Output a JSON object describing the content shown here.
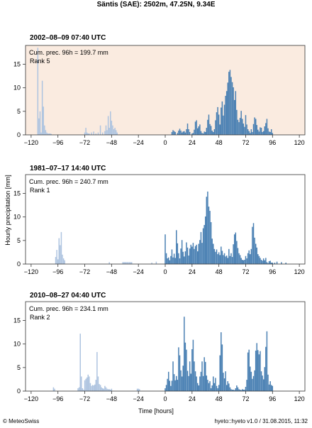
{
  "title": "Säntis (SAE): 2502m, 47.25N, 9.34E",
  "ylabel": "Hourly precipitation [mm]",
  "xlabel": "Time [hours]",
  "footer_left": "© MeteoSwiss",
  "footer_right": "hyeto::hyeto v1.0 / 31.08.2015, 11:32",
  "colors": {
    "before_event": "#aec4e0",
    "event": "#4a80b3",
    "highlight_bg": "#faebe0",
    "frame": "#333333"
  },
  "chart_data": [
    {
      "type": "bar",
      "title": "2002–08–09 07:40 UTC",
      "annotation_line1": "Cum. prec. 96h = 199.7 mm",
      "annotation_line2": "Rank 5",
      "highlighted": true,
      "xlim": [
        -125,
        125
      ],
      "ylim": [
        0,
        19
      ],
      "xticks": [
        -120,
        -96,
        -72,
        -48,
        -24,
        0,
        24,
        48,
        72,
        96,
        120
      ],
      "yticks": [
        0,
        5,
        10,
        15
      ],
      "grid": false,
      "series": [
        {
          "x": [
            -114,
            -113,
            -112,
            -111,
            -110,
            -109,
            -108,
            -107,
            -106,
            -105,
            -104,
            -103,
            -102,
            -72,
            -71,
            -70,
            -69,
            -68,
            -66,
            -64,
            -62,
            -60,
            -58,
            -56,
            -54,
            -53,
            -52,
            -51,
            -50,
            -49,
            -48,
            -47,
            -46,
            -45,
            -44,
            -43
          ],
          "values": [
            18.5,
            3.5,
            5,
            0.5,
            11.5,
            6,
            2,
            1,
            0.5,
            0.3,
            0.3,
            0.3,
            0.2,
            0.5,
            1.5,
            0.5,
            0.3,
            0.3,
            0.5,
            0.7,
            0.3,
            0.5,
            2,
            0.5,
            0.8,
            2,
            1,
            4,
            1.5,
            5,
            3,
            2,
            1.2,
            1.5,
            1,
            0.5
          ]
        },
        {
          "x": [
            6,
            7,
            8,
            9,
            11,
            12,
            13,
            14,
            15,
            16,
            17,
            18,
            19,
            20,
            21,
            22,
            24,
            25,
            26,
            27,
            28,
            29,
            30,
            31,
            32,
            33,
            34,
            35,
            36,
            37,
            38,
            39,
            40,
            41,
            42,
            43,
            44,
            45,
            46,
            47,
            48,
            49,
            50,
            51,
            52,
            53,
            54,
            55,
            56,
            57,
            58,
            59,
            60,
            61,
            62,
            63,
            64,
            65,
            66,
            67,
            68,
            69,
            70,
            71,
            72,
            73,
            74,
            75,
            76,
            77,
            78,
            79,
            80,
            81,
            82,
            83,
            84,
            85,
            86,
            87,
            88,
            89,
            90,
            91,
            92,
            93,
            94,
            95,
            96
          ],
          "values": [
            0.6,
            1,
            0.8,
            0.6,
            0.4,
            0.9,
            1.3,
            0.9,
            0.5,
            0.7,
            0.8,
            0.5,
            1.2,
            2.4,
            1.2,
            0.6,
            0.3,
            0.4,
            1.1,
            2.8,
            3.1,
            1.4,
            1.8,
            2.2,
            0.8,
            0.4,
            0.3,
            0.7,
            0.6,
            1.5,
            3.2,
            4.3,
            2.3,
            1.9,
            0.9,
            0.6,
            1.2,
            3.1,
            4.8,
            5.9,
            4.3,
            2.2,
            5.8,
            7.1,
            4.1,
            6.4,
            8.3,
            9.3,
            11.1,
            13.4,
            13.8,
            12.3,
            11.2,
            10.1,
            7.4,
            9.3,
            5.3,
            3.2,
            2.7,
            3.6,
            5.1,
            3.4,
            2.4,
            1.7,
            4.2,
            2.2,
            1.2,
            0.8,
            0.4,
            1.2,
            0.6,
            2.3,
            3.7,
            3.4,
            2.1,
            1.1,
            0.7,
            1.6,
            1.5,
            0.6,
            0.8,
            1.8,
            2.5,
            3.4,
            1.4,
            0.7,
            0.6,
            1.2,
            0.4
          ]
        }
      ]
    },
    {
      "type": "bar",
      "title": "1981–07–17 14:40 UTC",
      "annotation_line1": "Cum. prec. 96h = 240.7 mm",
      "annotation_line2": "Rank 1",
      "highlighted": false,
      "xlim": [
        -125,
        125
      ],
      "ylim": [
        0,
        19
      ],
      "xticks": [
        -120,
        -96,
        -72,
        -48,
        -24,
        0,
        24,
        48,
        72,
        96,
        120
      ],
      "yticks": [
        0,
        5,
        10,
        15
      ],
      "grid": false,
      "series": [
        {
          "x": [
            -98,
            -97,
            -96,
            -95,
            -94,
            -93,
            -92,
            -91,
            -90,
            -50,
            -38,
            -37,
            -36,
            -35,
            -34,
            -33,
            -32,
            -31,
            -30,
            -12,
            -8
          ],
          "values": [
            1.5,
            3,
            1,
            5.5,
            4,
            6.8,
            2,
            1.2,
            0.8,
            0.4,
            0.4,
            0.4,
            0.4,
            0.4,
            0.4,
            0.4,
            0.4,
            0.4,
            0.4,
            0.3,
            0.5
          ]
        },
        {
          "x": [
            0,
            1,
            2,
            3,
            4,
            5,
            6,
            7,
            8,
            9,
            10,
            11,
            12,
            13,
            14,
            15,
            16,
            17,
            18,
            19,
            20,
            21,
            22,
            23,
            24,
            25,
            26,
            27,
            28,
            29,
            30,
            31,
            32,
            33,
            34,
            35,
            36,
            37,
            38,
            39,
            40,
            41,
            42,
            43,
            44,
            45,
            46,
            47,
            48,
            49,
            50,
            51,
            52,
            53,
            54,
            55,
            56,
            57,
            58,
            59,
            60,
            61,
            62,
            63,
            64,
            65,
            66,
            67,
            68,
            69,
            70,
            71,
            72,
            73,
            74,
            75,
            76,
            77,
            78,
            79,
            80,
            81,
            82,
            83,
            84,
            85,
            86,
            87,
            88,
            89,
            90,
            91,
            92,
            93,
            94,
            95,
            96,
            98,
            100,
            104,
            108
          ],
          "values": [
            6.3,
            2.3,
            1.2,
            1.4,
            0.8,
            1.7,
            3.1,
            1.4,
            2.2,
            1.3,
            7.2,
            4.4,
            2.3,
            1.2,
            3.3,
            5.1,
            2.6,
            1.6,
            2.7,
            4.6,
            3.5,
            1.8,
            3.3,
            4.1,
            3.7,
            4.5,
            3.2,
            3.8,
            4.1,
            2.7,
            4.3,
            5.1,
            6.8,
            4.5,
            7.6,
            8.3,
            10.1,
            14.3,
            15.4,
            12.2,
            11.3,
            8.9,
            5.4,
            4.3,
            3.2,
            2.6,
            3.1,
            2.1,
            2.5,
            1.9,
            3.7,
            2.8,
            1.9,
            2.3,
            1.6,
            1.8,
            1.3,
            3.2,
            1.7,
            2.3,
            1.5,
            4.2,
            6.3,
            6.7,
            4.9,
            3.4,
            2.3,
            1.9,
            1.3,
            0.9,
            0.8,
            0.9,
            1.7,
            1.2,
            2.3,
            2.9,
            2.1,
            3.2,
            7.9,
            8.7,
            5.6,
            4.3,
            3.5,
            2.1,
            1.7,
            1.3,
            0.9,
            0.7,
            1.2,
            0.8,
            1.3,
            0.4,
            0.2,
            0.6,
            0.7,
            0.3,
            0.3,
            0.3,
            0.5,
            0.4,
            0.3
          ]
        }
      ]
    },
    {
      "type": "bar",
      "title": "2010–08–27 04:40 UTC",
      "annotation_line1": "Cum. prec. 96h = 234.1 mm",
      "annotation_line2": "Rank 2",
      "highlighted": false,
      "xlim": [
        -125,
        125
      ],
      "ylim": [
        0,
        19
      ],
      "xticks": [
        -120,
        -96,
        -72,
        -48,
        -24,
        0,
        24,
        48,
        72,
        96,
        120
      ],
      "yticks": [
        0,
        5,
        10,
        15
      ],
      "grid": false,
      "series": [
        {
          "x": [
            -100,
            -99,
            -78,
            -77,
            -76,
            -75,
            -74,
            -73,
            -72,
            -71,
            -70,
            -69,
            -68,
            -67,
            -66,
            -65,
            -64,
            -63,
            -62,
            -61,
            -60,
            -59,
            -58,
            -57,
            -56,
            -55,
            -54,
            -53,
            -52,
            -51,
            -50,
            -49,
            -48,
            -25,
            -24,
            -23
          ],
          "values": [
            0.8,
            0.5,
            0.6,
            0.8,
            12.2,
            3.1,
            0.6,
            0.3,
            2.3,
            2.6,
            2.9,
            3.5,
            3.1,
            1.7,
            1.1,
            1.3,
            1.2,
            1.4,
            2.4,
            8.3,
            3.1,
            1.5,
            1.3,
            0.8,
            0.6,
            0.5,
            1.1,
            0.8,
            0.5,
            0.4,
            0.4,
            0.3,
            0.5,
            0.5,
            0.5,
            0.4
          ]
        },
        {
          "x": [
            0,
            1,
            2,
            3,
            4,
            5,
            6,
            7,
            8,
            9,
            10,
            11,
            12,
            13,
            14,
            15,
            16,
            17,
            18,
            19,
            20,
            21,
            22,
            23,
            24,
            25,
            26,
            27,
            28,
            29,
            30,
            31,
            32,
            33,
            34,
            35,
            36,
            37,
            38,
            39,
            40,
            41,
            42,
            43,
            44,
            45,
            46,
            47,
            48,
            49,
            50,
            51,
            52,
            53,
            54,
            55,
            56,
            57,
            58,
            59,
            60,
            61,
            62,
            63,
            64,
            65,
            66,
            67,
            68,
            69,
            70,
            71,
            72,
            73,
            74,
            75,
            76,
            77,
            78,
            79,
            80,
            81,
            82,
            83,
            84,
            85,
            86,
            87,
            88,
            89,
            90,
            91,
            92,
            93,
            94,
            95,
            96
          ],
          "values": [
            0.6,
            1.3,
            2.6,
            4.1,
            2.2,
            1.1,
            2.2,
            6.3,
            3.6,
            2.3,
            3.2,
            2.4,
            9.3,
            7.6,
            4.4,
            3.1,
            5.4,
            15.8,
            10.3,
            8.8,
            4.3,
            3.2,
            6.3,
            3.7,
            8.9,
            10.9,
            6.3,
            4.2,
            3.1,
            1.7,
            1.2,
            3.1,
            4.1,
            6.3,
            3.2,
            7.2,
            6.2,
            3.3,
            2.4,
            1.7,
            2.1,
            0.6,
            1.2,
            3.1,
            1.7,
            2.8,
            1.1,
            0.6,
            1.3,
            7.6,
            12.5,
            9.9,
            3.9,
            2.7,
            4.2,
            1.3,
            2.1,
            1.6,
            0.8,
            0.4,
            0.3,
            0.3,
            0.2,
            0.6,
            1.2,
            0.8,
            0.4,
            0.3,
            0.2,
            0.4,
            0.3,
            0.3,
            0.9,
            2.4,
            8.2,
            8.8,
            5.2,
            4.1,
            2.6,
            3.2,
            4.4,
            8.6,
            10.2,
            8.7,
            7.8,
            8.5,
            4.2,
            3.3,
            2.5,
            5.1,
            9.4,
            12.7,
            3.5,
            1.4,
            2.1,
            1.3,
            1.1
          ]
        }
      ]
    }
  ]
}
